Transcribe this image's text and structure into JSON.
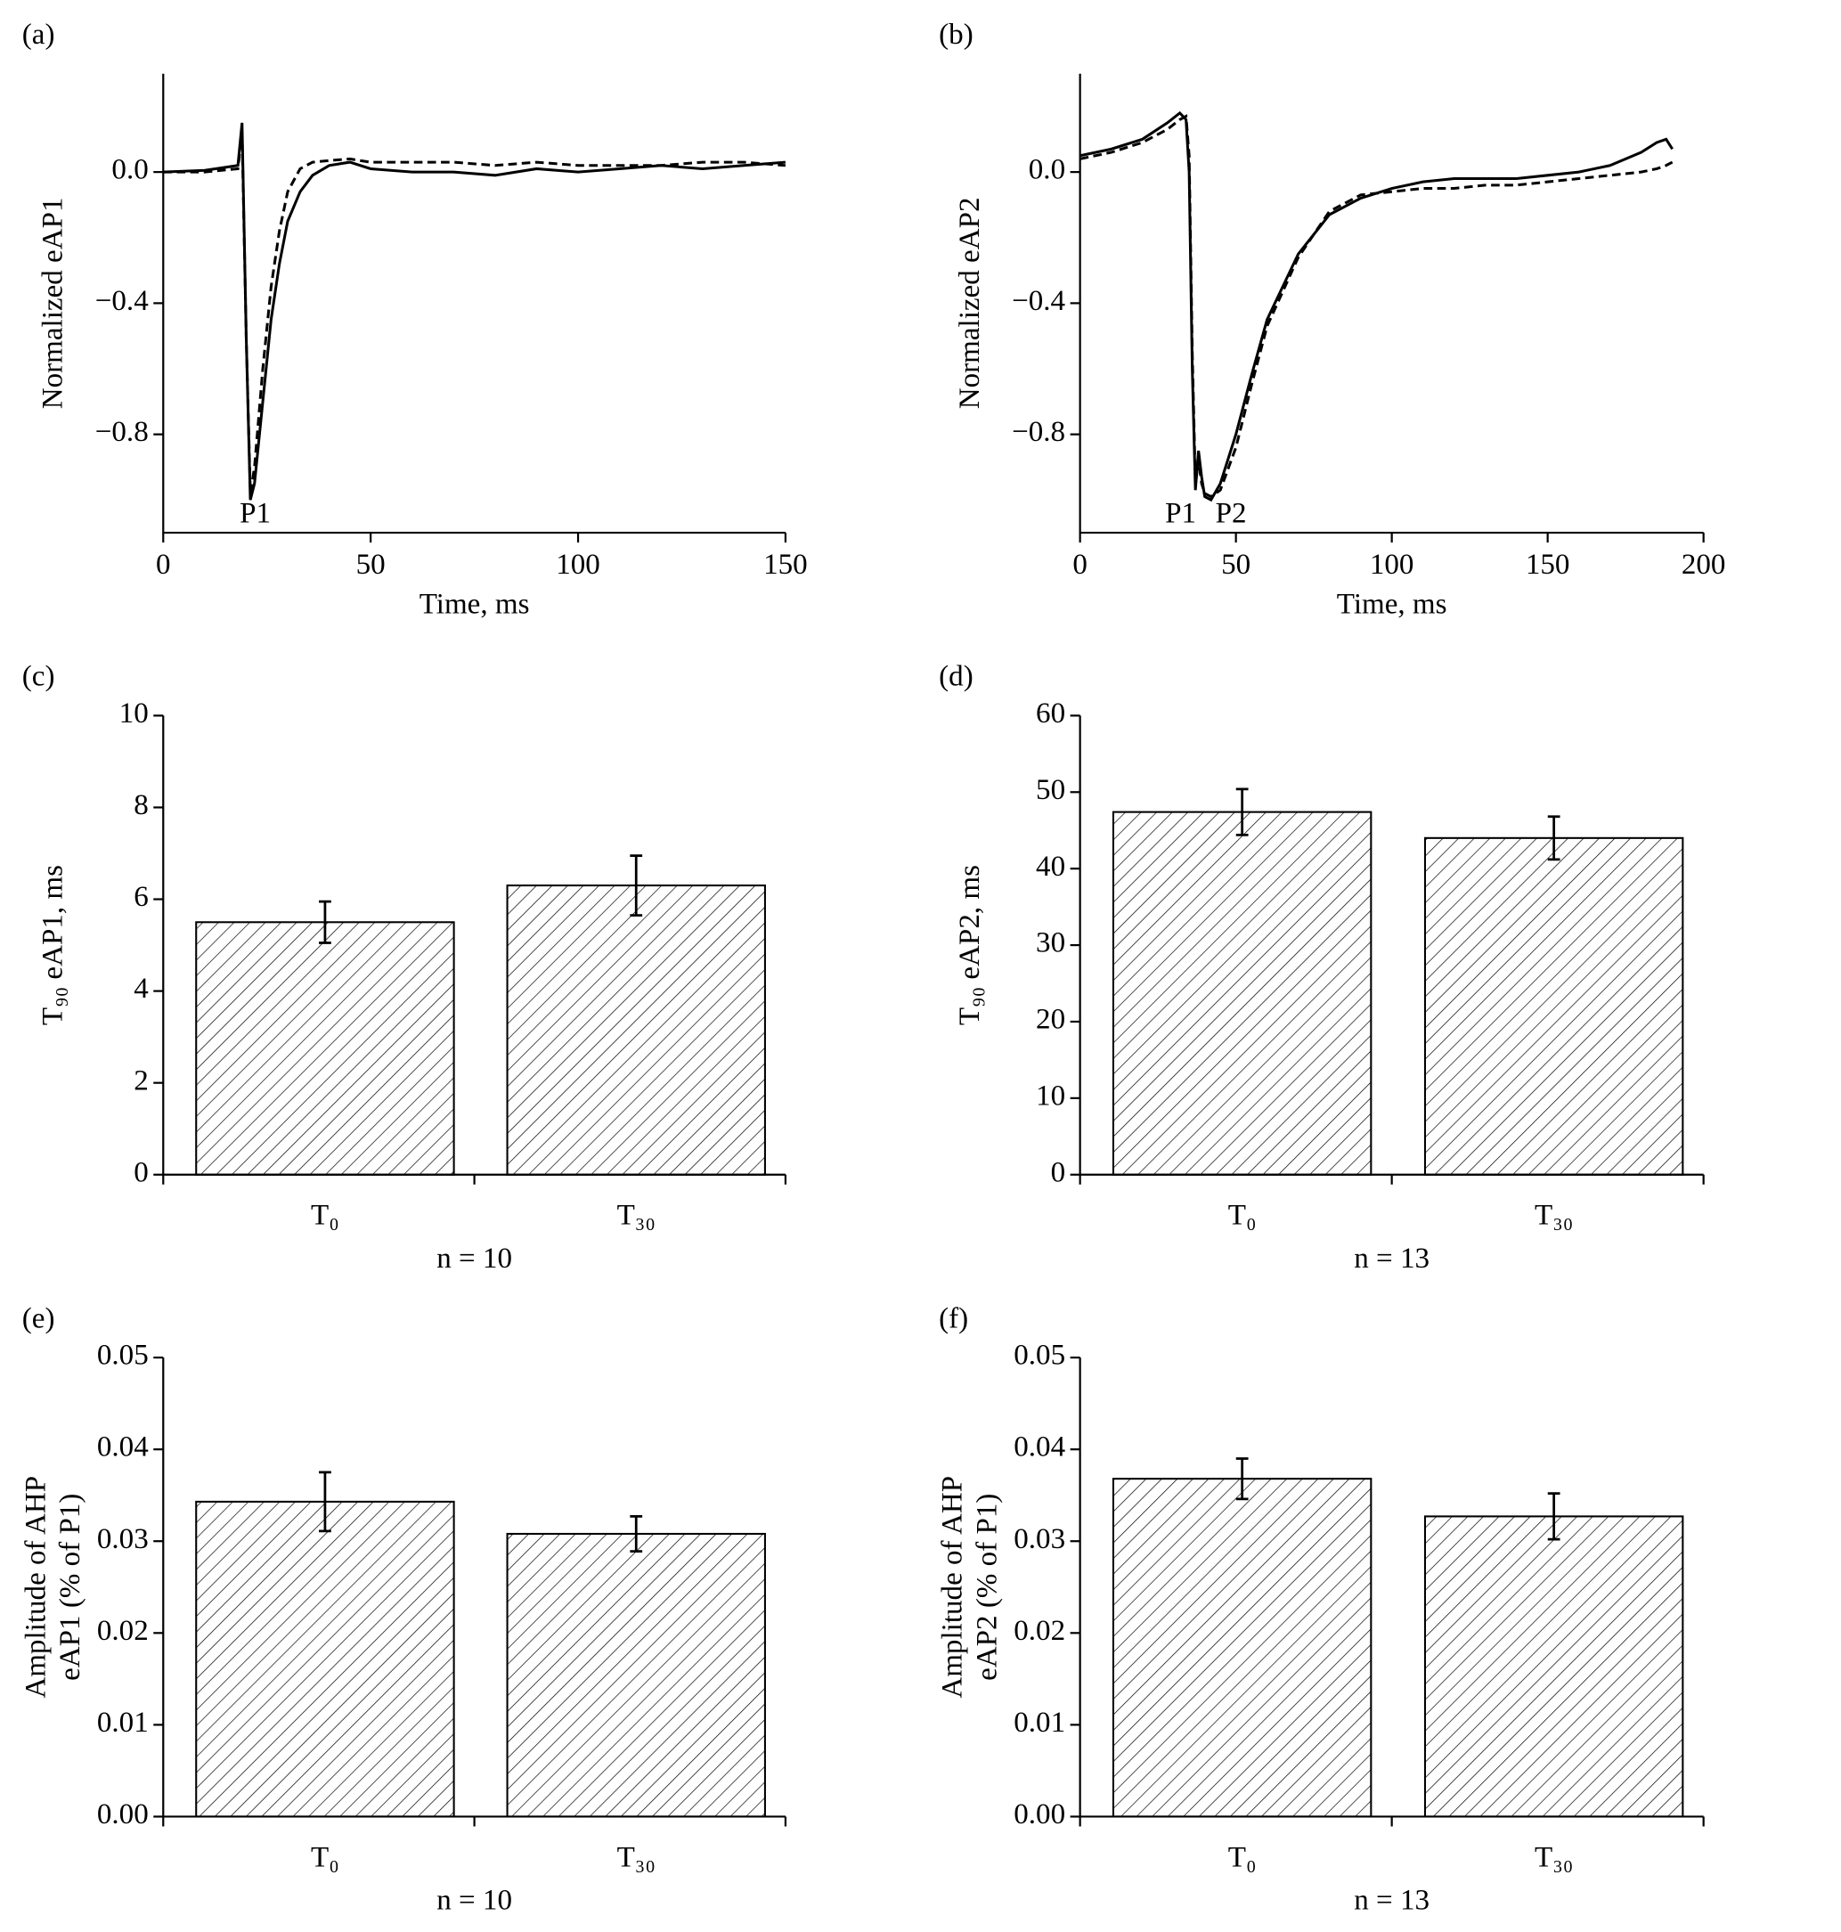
{
  "chart_data": [
    {
      "type": "line",
      "label": "(a)",
      "xlabel": "Time, ms",
      "ylabel": [
        "Normalized eAP1"
      ],
      "xlim": [
        0,
        150
      ],
      "xticks": [
        0,
        50,
        100,
        150
      ],
      "ylim": [
        -1.1,
        0.3
      ],
      "yticks": [
        {
          "value": 0,
          "label": "0.0"
        },
        {
          "value": -0.4,
          "label": "−0.4"
        },
        {
          "value": -0.8,
          "label": "−0.8"
        }
      ],
      "annotations": [
        "P1"
      ],
      "x": [
        0,
        10,
        18,
        19,
        20,
        21,
        22,
        24,
        26,
        28,
        30,
        33,
        36,
        40,
        45,
        50,
        60,
        70,
        80,
        90,
        100,
        110,
        120,
        130,
        140,
        150
      ],
      "series": [
        {
          "color": "#000000",
          "style": "solid",
          "values": [
            0,
            0.005,
            0.02,
            0.15,
            -0.5,
            -1.0,
            -0.95,
            -0.7,
            -0.45,
            -0.28,
            -0.15,
            -0.06,
            -0.01,
            0.02,
            0.03,
            0.01,
            0.0,
            0.0,
            -0.01,
            0.01,
            0.0,
            0.01,
            0.02,
            0.01,
            0.02,
            0.03
          ]
        },
        {
          "color": "#000000",
          "style": "dashed",
          "values": [
            0,
            0,
            0.01,
            0.12,
            -0.5,
            -0.98,
            -0.9,
            -0.6,
            -0.35,
            -0.18,
            -0.06,
            0.01,
            0.03,
            0.035,
            0.04,
            0.03,
            0.03,
            0.03,
            0.02,
            0.03,
            0.02,
            0.02,
            0.02,
            0.03,
            0.03,
            0.02
          ]
        }
      ]
    },
    {
      "type": "line",
      "label": "(b)",
      "xlabel": "Time, ms",
      "ylabel": [
        "Normalized eAP2"
      ],
      "xlim": [
        0,
        200
      ],
      "xticks": [
        0,
        50,
        100,
        150,
        200
      ],
      "ylim": [
        -1.1,
        0.3
      ],
      "yticks": [
        {
          "value": 0,
          "label": "0.0"
        },
        {
          "value": -0.4,
          "label": "−0.4"
        },
        {
          "value": -0.8,
          "label": "−0.8"
        }
      ],
      "annotations": [
        "P1",
        "P2"
      ],
      "x": [
        0,
        10,
        20,
        28,
        32,
        34,
        35,
        36,
        37,
        38,
        39,
        40,
        42,
        45,
        50,
        55,
        60,
        70,
        80,
        90,
        100,
        110,
        120,
        130,
        140,
        150,
        160,
        170,
        180,
        185,
        188,
        190
      ],
      "series": [
        {
          "color": "#000000",
          "style": "solid",
          "values": [
            0.05,
            0.07,
            0.1,
            0.15,
            0.18,
            0.16,
            0.0,
            -0.6,
            -0.97,
            -0.85,
            -0.93,
            -0.99,
            -1.0,
            -0.95,
            -0.8,
            -0.62,
            -0.45,
            -0.25,
            -0.13,
            -0.08,
            -0.05,
            -0.03,
            -0.02,
            -0.02,
            -0.02,
            -0.01,
            0.0,
            0.02,
            0.06,
            0.09,
            0.1,
            0.07
          ]
        },
        {
          "color": "#000000",
          "style": "dashed",
          "values": [
            0.04,
            0.06,
            0.09,
            0.13,
            0.16,
            0.17,
            0.05,
            -0.55,
            -0.95,
            -0.88,
            -0.95,
            -0.98,
            -0.99,
            -0.97,
            -0.84,
            -0.65,
            -0.47,
            -0.26,
            -0.12,
            -0.07,
            -0.06,
            -0.05,
            -0.05,
            -0.04,
            -0.04,
            -0.03,
            -0.02,
            -0.01,
            0.0,
            0.01,
            0.02,
            0.03
          ]
        }
      ]
    },
    {
      "type": "bar",
      "label": "(c)",
      "xlabel": "n = 10",
      "ylabel": [
        "T₉₀ eAP1, ms"
      ],
      "categories": [
        "T₀",
        "T₃₀"
      ],
      "values": [
        5.5,
        6.3
      ],
      "errors": [
        0.45,
        0.65
      ],
      "color": "#ffffff",
      "hatch": true,
      "ylim": [
        0,
        10
      ],
      "yticks": [
        0,
        2,
        4,
        6,
        8,
        10
      ]
    },
    {
      "type": "bar",
      "label": "(d)",
      "xlabel": "n = 13",
      "ylabel": [
        "T₉₀ eAP2, ms"
      ],
      "categories": [
        "T₀",
        "T₃₀"
      ],
      "values": [
        47.4,
        44
      ],
      "errors": [
        3,
        2.8
      ],
      "color": "#ffffff",
      "hatch": true,
      "ylim": [
        0,
        60
      ],
      "yticks": [
        0,
        10,
        20,
        30,
        40,
        50,
        60
      ]
    },
    {
      "type": "bar",
      "label": "(e)",
      "xlabel": "n = 10",
      "ylabel": [
        "Amplitude of AHP",
        "eAP1 (% of P1)"
      ],
      "categories": [
        "T₀",
        "T₃₀"
      ],
      "values": [
        0.0343,
        0.0308
      ],
      "errors": [
        0.0032,
        0.0019
      ],
      "color": "#ffffff",
      "hatch": true,
      "ylim": [
        0,
        0.05
      ],
      "yticks": [
        {
          "value": 0,
          "label": "0.00"
        },
        0.01,
        0.02,
        0.03,
        0.04,
        0.05
      ]
    },
    {
      "type": "bar",
      "label": "(f)",
      "xlabel": "n = 13",
      "ylabel": [
        "Amplitude of AHP",
        "eAP2 (% of P1)"
      ],
      "categories": [
        "T₀",
        "T₃₀"
      ],
      "values": [
        0.0368,
        0.0327
      ],
      "errors": [
        0.0022,
        0.0025
      ],
      "color": "#ffffff",
      "hatch": true,
      "ylim": [
        0,
        0.05
      ],
      "yticks": [
        {
          "value": 0,
          "label": "0.00"
        },
        0.01,
        0.02,
        0.03,
        0.04,
        0.05
      ]
    }
  ]
}
